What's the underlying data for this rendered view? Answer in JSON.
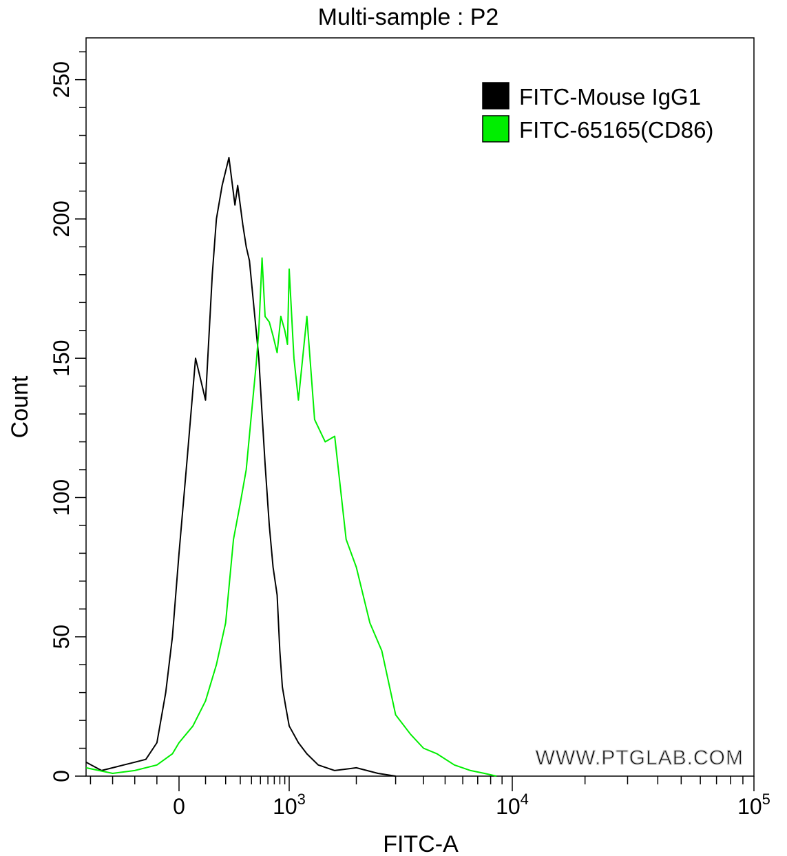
{
  "chart_data": {
    "type": "line",
    "title": "Multi-sample : P2",
    "xlabel": "FITC-A",
    "ylabel": "Count",
    "x_scale": "biexponential",
    "x_tick_labels": [
      {
        "x": 0,
        "label": "0",
        "sup": ""
      },
      {
        "x": 1000,
        "label": "10",
        "sup": "3"
      },
      {
        "x": 10000,
        "label": "10",
        "sup": "4"
      },
      {
        "x": 100000,
        "label": "10",
        "sup": "5"
      }
    ],
    "ylim": [
      0,
      265
    ],
    "y_ticks": [
      0,
      50,
      100,
      150,
      200,
      250
    ],
    "grid": false,
    "legend_position": "top-right",
    "watermark": "WWW.PTGLAB.COM",
    "series": [
      {
        "name": "FITC-Mouse IgG1",
        "color": "#000000",
        "points": [
          [
            -420,
            5
          ],
          [
            -350,
            2
          ],
          [
            -300,
            3
          ],
          [
            -250,
            4
          ],
          [
            -200,
            5
          ],
          [
            -150,
            6
          ],
          [
            -100,
            12
          ],
          [
            -60,
            30
          ],
          [
            -30,
            50
          ],
          [
            0,
            80
          ],
          [
            30,
            115
          ],
          [
            60,
            150
          ],
          [
            100,
            135
          ],
          [
            130,
            180
          ],
          [
            150,
            200
          ],
          [
            180,
            212
          ],
          [
            220,
            222
          ],
          [
            260,
            205
          ],
          [
            280,
            212
          ],
          [
            320,
            198
          ],
          [
            350,
            190
          ],
          [
            380,
            185
          ],
          [
            420,
            170
          ],
          [
            480,
            150
          ],
          [
            520,
            130
          ],
          [
            560,
            112
          ],
          [
            620,
            90
          ],
          [
            680,
            75
          ],
          [
            750,
            65
          ],
          [
            800,
            45
          ],
          [
            850,
            32
          ],
          [
            920,
            25
          ],
          [
            1000,
            18
          ],
          [
            1100,
            12
          ],
          [
            1200,
            8
          ],
          [
            1350,
            4
          ],
          [
            1600,
            2
          ],
          [
            2000,
            3
          ],
          [
            2500,
            1
          ],
          [
            3000,
            0
          ]
        ]
      },
      {
        "name": "FITC-65165(CD86)",
        "color": "#00ee00",
        "points": [
          [
            -420,
            3
          ],
          [
            -300,
            1
          ],
          [
            -200,
            2
          ],
          [
            -100,
            4
          ],
          [
            -30,
            8
          ],
          [
            0,
            12
          ],
          [
            50,
            18
          ],
          [
            100,
            27
          ],
          [
            150,
            40
          ],
          [
            200,
            55
          ],
          [
            250,
            85
          ],
          [
            300,
            98
          ],
          [
            350,
            110
          ],
          [
            400,
            130
          ],
          [
            450,
            148
          ],
          [
            480,
            160
          ],
          [
            520,
            186
          ],
          [
            560,
            165
          ],
          [
            620,
            163
          ],
          [
            680,
            158
          ],
          [
            750,
            152
          ],
          [
            820,
            165
          ],
          [
            900,
            160
          ],
          [
            960,
            155
          ],
          [
            1000,
            182
          ],
          [
            1050,
            150
          ],
          [
            1100,
            135
          ],
          [
            1200,
            165
          ],
          [
            1300,
            128
          ],
          [
            1450,
            120
          ],
          [
            1600,
            122
          ],
          [
            1800,
            85
          ],
          [
            2000,
            75
          ],
          [
            2300,
            55
          ],
          [
            2600,
            45
          ],
          [
            3000,
            22
          ],
          [
            3500,
            15
          ],
          [
            4000,
            10
          ],
          [
            4600,
            8
          ],
          [
            5500,
            4
          ],
          [
            6500,
            2
          ],
          [
            7500,
            1
          ],
          [
            8500,
            0
          ]
        ]
      }
    ]
  }
}
